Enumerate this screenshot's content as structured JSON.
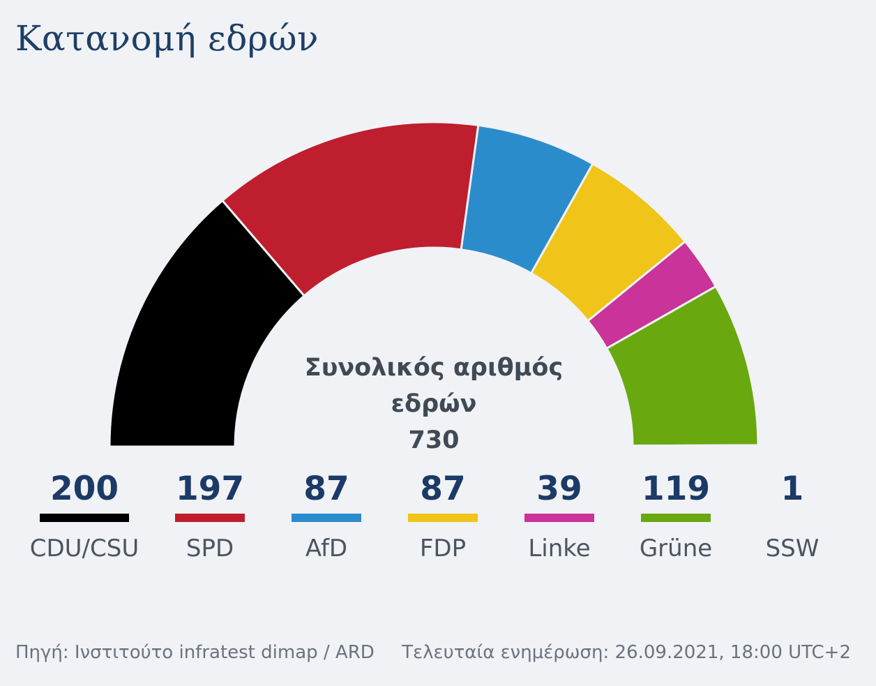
{
  "title": "Κατανομή εδρών",
  "chart_data": {
    "type": "pie",
    "subtype": "parliament-semicircle",
    "title": "Κατανομή εδρών",
    "total_label": "Συνολικός αριθμός εδρών",
    "total_label_lines": [
      "Συνολικός αριθμός",
      "εδρών"
    ],
    "total_value": "730",
    "categories": [
      "CDU/CSU",
      "SPD",
      "AfD",
      "FDP",
      "Linke",
      "Grüne",
      "SSW"
    ],
    "values": [
      200,
      197,
      87,
      87,
      39,
      119,
      1
    ],
    "colors": [
      "#000000",
      "#be1e2d",
      "#2b8ccb",
      "#f0c419",
      "#c9339a",
      "#6aa80f",
      "#1b3a66"
    ],
    "legend_labels": [
      "CDU/CSU",
      "SPD",
      "AfD",
      "FDP",
      "Linke",
      "Grüne",
      "SSW"
    ]
  },
  "legend": [
    {
      "value": "200",
      "label": "CDU/CSU",
      "color": "#000000"
    },
    {
      "value": "197",
      "label": "SPD",
      "color": "#be1e2d"
    },
    {
      "value": "87",
      "label": "AfD",
      "color": "#2b8ccb"
    },
    {
      "value": "87",
      "label": "FDP",
      "color": "#f0c419"
    },
    {
      "value": "39",
      "label": "Linke",
      "color": "#c9339a"
    },
    {
      "value": "119",
      "label": "Grüne",
      "color": "#6aa80f"
    },
    {
      "value": "1",
      "label": "SSW",
      "color": ""
    }
  ],
  "footer": {
    "source": "Πηγή: Ινστιτούτο infratest dimap / ARD",
    "updated": "Τελευταία ενημέρωση: 26.09.2021, 18:00 UTC+2"
  }
}
